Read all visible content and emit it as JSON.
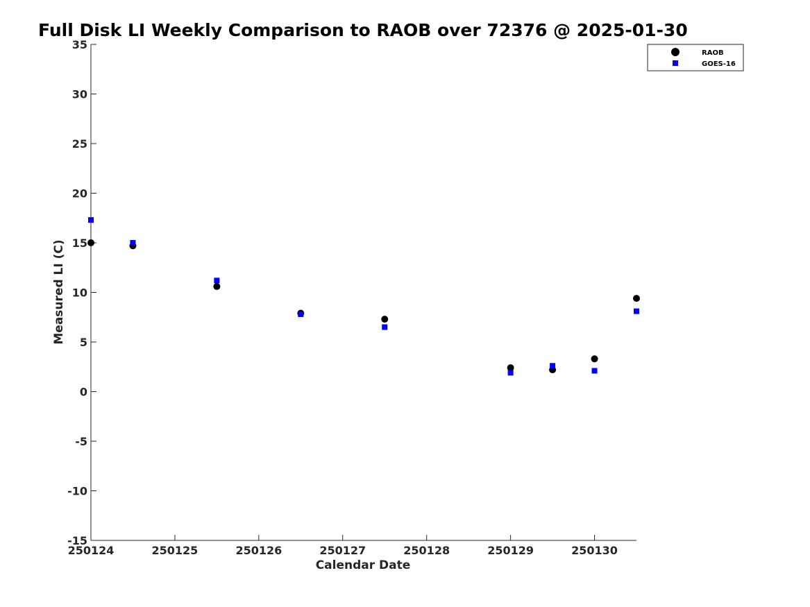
{
  "chart_data": {
    "type": "scatter",
    "title": "Full Disk LI Weekly Comparison to RAOB over 72376 @ 2025-01-30",
    "xlabel": "Calendar Date",
    "ylabel": "Measured LI (C)",
    "xlim": [
      250124,
      250130.5
    ],
    "ylim": [
      -15,
      35
    ],
    "x_ticks": [
      250124,
      250125,
      250126,
      250127,
      250128,
      250129,
      250130
    ],
    "x_tick_labels": [
      "250124",
      "250125",
      "250126",
      "250127",
      "250128",
      "250129",
      "250130"
    ],
    "y_ticks": [
      35,
      30,
      25,
      20,
      15,
      10,
      5,
      0,
      -5,
      -10,
      -15
    ],
    "y_tick_labels": [
      "35",
      "30",
      "25",
      "20",
      "15",
      "10",
      "5",
      "0",
      "-5",
      "-10",
      "-15"
    ],
    "grid": false,
    "legend_position": "top-right",
    "series": [
      {
        "name": "RAOB",
        "marker": "circle",
        "color": "#000000",
        "x": [
          250124,
          250124.5,
          250125.5,
          250126.5,
          250127.5,
          250129,
          250129.5,
          250130,
          250130.5
        ],
        "y": [
          15.0,
          14.7,
          10.6,
          7.9,
          7.3,
          2.4,
          2.2,
          3.3,
          9.4
        ]
      },
      {
        "name": "GOES-16",
        "marker": "square",
        "color": "#0000ff",
        "x": [
          250124,
          250124.5,
          250125.5,
          250126.5,
          250127.5,
          250129,
          250129.5,
          250130,
          250130.5
        ],
        "y": [
          17.3,
          15.0,
          11.2,
          7.8,
          6.5,
          1.9,
          2.6,
          2.1,
          8.1
        ]
      }
    ]
  }
}
